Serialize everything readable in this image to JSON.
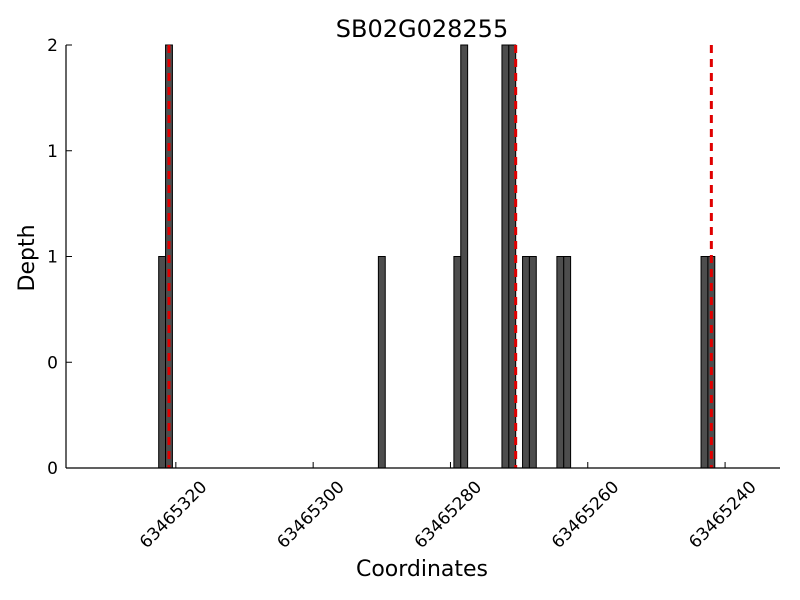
{
  "chart_data": {
    "type": "bar",
    "title": "SB02G028255",
    "xlabel": "Coordinates",
    "ylabel": "Depth",
    "x_reversed": true,
    "xlim": [
      63465336,
      63465232
    ],
    "ylim": [
      0,
      2
    ],
    "x_ticks": [
      {
        "value": 63465320,
        "label": "63465320"
      },
      {
        "value": 63465300,
        "label": "63465300"
      },
      {
        "value": 63465280,
        "label": "63465280"
      },
      {
        "value": 63465260,
        "label": "63465260"
      },
      {
        "value": 63465240,
        "label": "63465240"
      }
    ],
    "y_ticks": [
      {
        "value": 0,
        "label": "0"
      },
      {
        "value": 0.5,
        "label": "0"
      },
      {
        "value": 1,
        "label": "1"
      },
      {
        "value": 1.5,
        "label": "1"
      },
      {
        "value": 2,
        "label": "2"
      }
    ],
    "bars": [
      {
        "x": 63465322,
        "y": 1
      },
      {
        "x": 63465321,
        "y": 2
      },
      {
        "x": 63465290,
        "y": 1
      },
      {
        "x": 63465279,
        "y": 1
      },
      {
        "x": 63465278,
        "y": 2
      },
      {
        "x": 63465272,
        "y": 2
      },
      {
        "x": 63465271,
        "y": 2
      },
      {
        "x": 63465269,
        "y": 1
      },
      {
        "x": 63465268,
        "y": 1
      },
      {
        "x": 63465264,
        "y": 1
      },
      {
        "x": 63465263,
        "y": 1
      },
      {
        "x": 63465243,
        "y": 1
      },
      {
        "x": 63465242,
        "y": 1
      }
    ],
    "markers": [
      63465321,
      63465270.5,
      63465242
    ],
    "bar_color": "#4d4d4d",
    "marker_color": "#e00000",
    "grid": false
  }
}
